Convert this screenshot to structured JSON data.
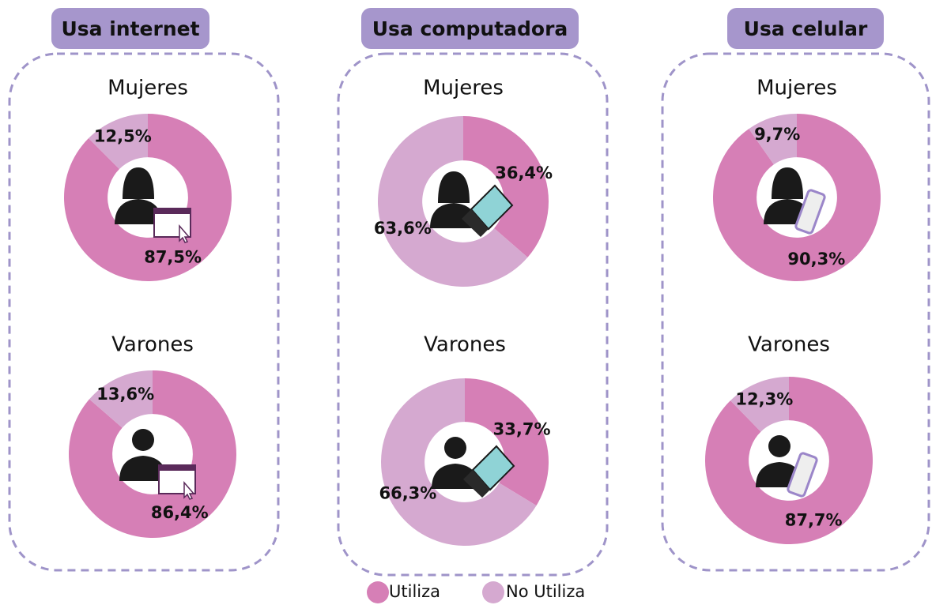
{
  "panels": [
    {
      "title": "Usa internet",
      "icon": "internet"
    },
    {
      "title": "Usa computadora",
      "icon": "laptop"
    },
    {
      "title": "Usa celular",
      "icon": "phone"
    }
  ],
  "legend": [
    {
      "name": "Utiliza",
      "color": "#d67fb6"
    },
    {
      "name": "No Utiliza",
      "color": "#d5a9d0"
    }
  ],
  "chart_data": [
    {
      "type": "pie",
      "title": "Mujeres",
      "values": [
        87.5,
        12.5
      ],
      "value_labels": [
        "87,5%",
        "12,5%"
      ]
    },
    {
      "type": "pie",
      "title": "Varones",
      "values": [
        86.4,
        13.6
      ],
      "value_labels": [
        "86,4%",
        "13,6%"
      ]
    },
    {
      "type": "pie",
      "title": "Mujeres",
      "values": [
        36.4,
        63.6
      ],
      "value_labels": [
        "36,4%",
        "63,6%"
      ]
    },
    {
      "type": "pie",
      "title": "Varones",
      "values": [
        33.7,
        66.3
      ],
      "value_labels": [
        "33,7%",
        "66,3%"
      ]
    },
    {
      "type": "pie",
      "title": "Mujeres",
      "values": [
        90.3,
        9.7
      ],
      "value_labels": [
        "90,3%",
        "9,7%"
      ]
    },
    {
      "type": "pie",
      "title": "Varones",
      "values": [
        87.7,
        12.3
      ],
      "value_labels": [
        "87,7%",
        "12,3%"
      ]
    }
  ]
}
